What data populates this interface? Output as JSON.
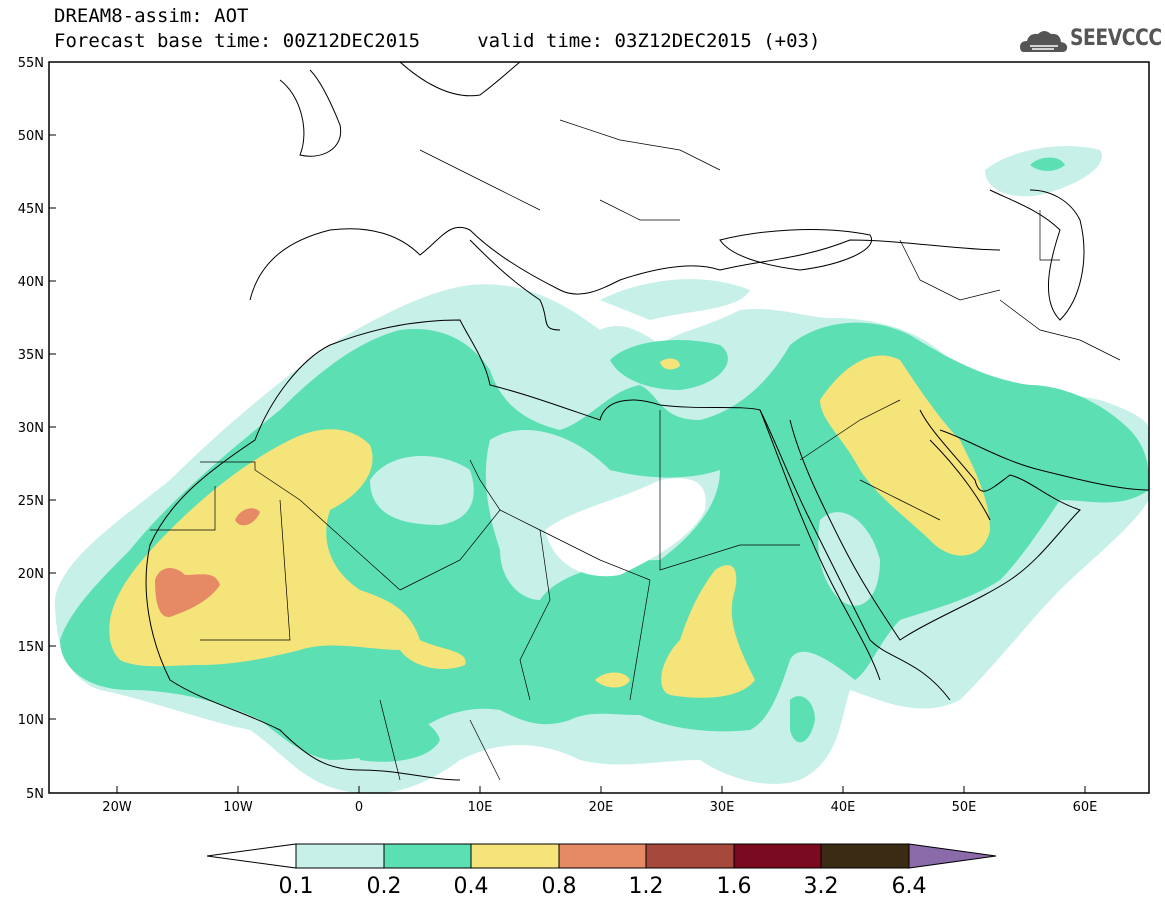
{
  "title": {
    "line1": "DREAM8-assim: AOT",
    "line2": "Forecast base time: 00Z12DEC2015     valid time: 03Z12DEC2015 (+03)"
  },
  "logo": {
    "text": "SEEVCCC",
    "icon": "cloud-icon"
  },
  "map": {
    "lat_ticks": [
      "55N",
      "50N",
      "45N",
      "40N",
      "35N",
      "30N",
      "25N",
      "20N",
      "15N",
      "10N",
      "5N"
    ],
    "lon_ticks": [
      "20W",
      "10W",
      "0",
      "10E",
      "20E",
      "30E",
      "40E",
      "50E",
      "60E"
    ],
    "lon_range": [
      -25,
      65
    ],
    "lat_range": [
      5,
      55
    ]
  },
  "legend": {
    "labels": [
      "0.1",
      "0.2",
      "0.4",
      "0.8",
      "1.2",
      "1.6",
      "3.2",
      "6.4"
    ],
    "colors": [
      "#ffffff",
      "#c6f0e8",
      "#5ddfb4",
      "#f5e47a",
      "#e68a66",
      "#a6493c",
      "#7a0a1f",
      "#3b2a14",
      "#8a6aa8"
    ]
  }
}
